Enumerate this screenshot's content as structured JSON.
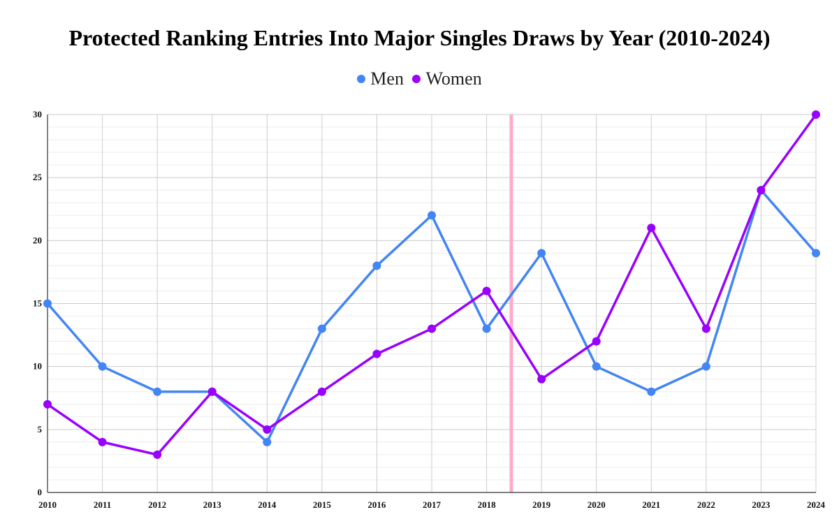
{
  "chart_data": {
    "type": "line",
    "title": "Protected Ranking Entries Into Major Singles Draws by Year (2010-2024)",
    "xlabel": "",
    "ylabel": "",
    "x": [
      "2010",
      "2011",
      "2012",
      "2013",
      "2014",
      "2015",
      "2016",
      "2017",
      "2018",
      "2019",
      "2020",
      "2021",
      "2022",
      "2023",
      "2024"
    ],
    "ylim": [
      0,
      30
    ],
    "yticks": [
      0,
      5,
      10,
      15,
      20,
      25,
      30
    ],
    "grid": true,
    "legend_position": "top-center",
    "series": [
      {
        "name": "Men",
        "color": "#4285f4",
        "values": [
          15,
          10,
          8,
          8,
          4,
          13,
          18,
          22,
          13,
          19,
          10,
          8,
          10,
          24,
          19
        ]
      },
      {
        "name": "Women",
        "color": "#9900ff",
        "values": [
          7,
          4,
          3,
          8,
          5,
          8,
          11,
          13,
          16,
          9,
          12,
          21,
          13,
          24,
          30
        ]
      }
    ],
    "reference_line": {
      "x": 2018.45,
      "color": "#ffaacc"
    }
  }
}
